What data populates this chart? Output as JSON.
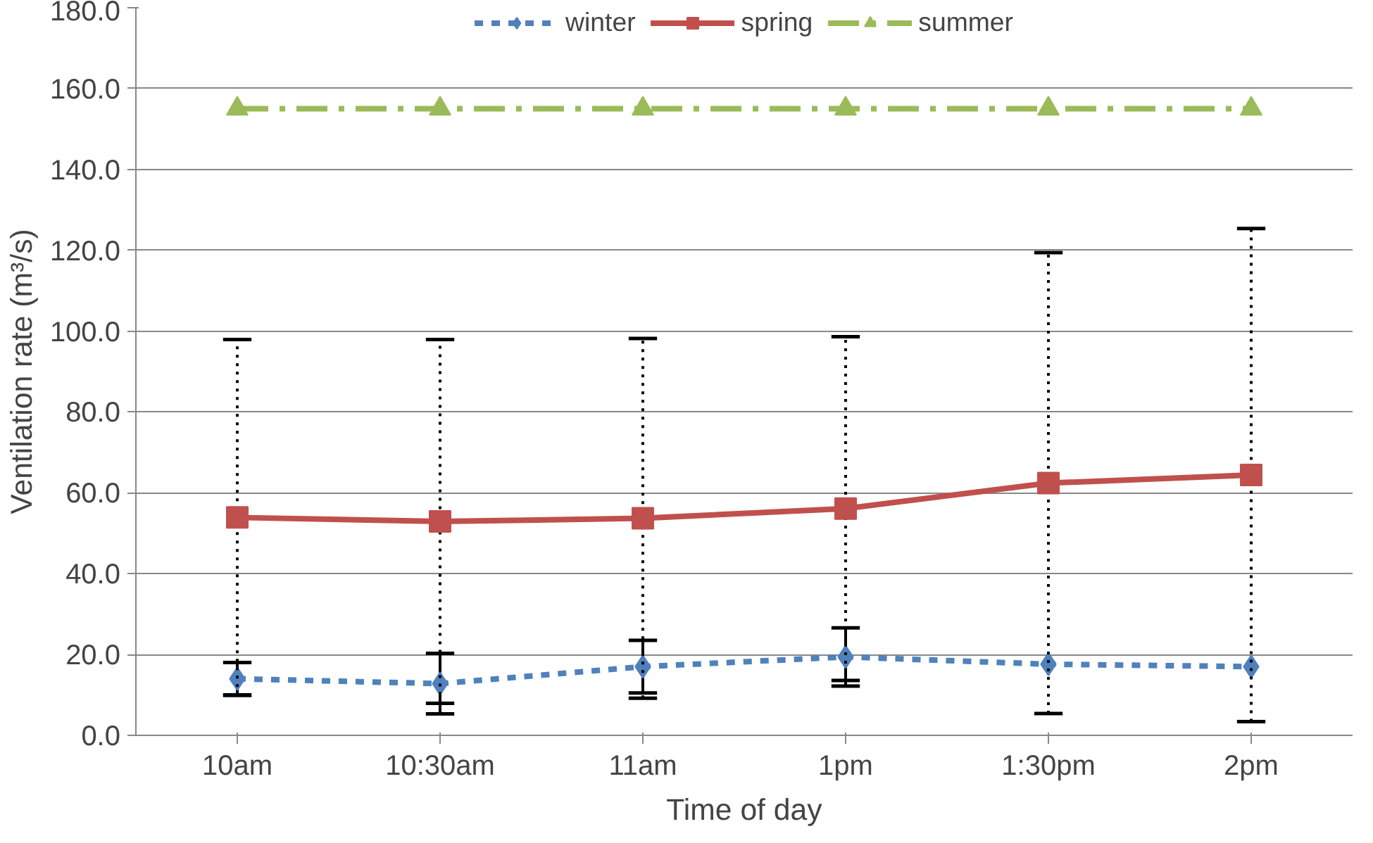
{
  "chart_data": {
    "type": "line",
    "xlabel": "Time of day",
    "ylabel": "Ventilation rate (m³/s)",
    "categories": [
      "10am",
      "10:30am",
      "11am",
      "1pm",
      "1:30pm",
      "2pm"
    ],
    "series": [
      {
        "name": "winter",
        "color": "#4f81bd",
        "values": [
          14.0,
          12.8,
          17.0,
          19.4,
          17.6,
          17.0
        ],
        "errors": [
          4,
          7.5,
          6.5,
          7.2,
          null,
          null
        ],
        "marker": "diamond",
        "line_style": "dashed"
      },
      {
        "name": "spring",
        "color": "#c0504d",
        "values": [
          53.9,
          52.9,
          53.7,
          56.1,
          62.4,
          64.4
        ],
        "errors": [
          44,
          45,
          44.5,
          42.5,
          57,
          61
        ],
        "marker": "square",
        "line_style": "solid"
      },
      {
        "name": "summer",
        "color": "#9bbb59",
        "values": [
          155,
          155,
          155,
          155,
          155,
          155
        ],
        "marker": "triangle",
        "line_style": "dashdot"
      }
    ],
    "ylim": [
      0,
      180
    ],
    "yticks": [
      {
        "value": 0,
        "label": "0.0"
      },
      {
        "value": 20,
        "label": "20.0"
      },
      {
        "value": 40,
        "label": "40.0"
      },
      {
        "value": 60,
        "label": "60.0"
      },
      {
        "value": 80,
        "label": "80.0"
      },
      {
        "value": 100,
        "label": "100.0"
      },
      {
        "value": 120,
        "label": "120.0"
      },
      {
        "value": 140,
        "label": "140.0"
      },
      {
        "value": 160,
        "label": "160.0"
      },
      {
        "value": 180,
        "label": "180.0"
      }
    ],
    "grid": "y",
    "legend": "top"
  }
}
